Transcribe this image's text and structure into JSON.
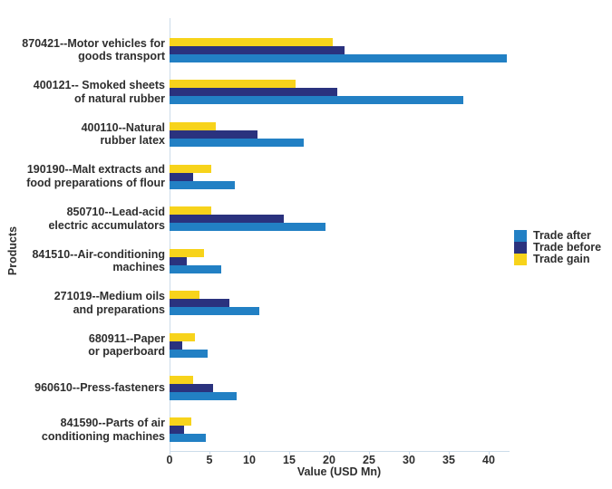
{
  "chart_data": {
    "type": "bar",
    "orientation": "horizontal",
    "xlabel": "Value (USD Mn)",
    "ylabel": "Products",
    "xlim": [
      0,
      42.5
    ],
    "xticks": [
      0,
      5,
      10,
      15,
      20,
      25,
      30,
      35,
      40
    ],
    "grid": false,
    "legend_position": "right",
    "series": [
      {
        "key": "after",
        "name": "Trade after",
        "color": "#2280C4"
      },
      {
        "key": "before",
        "name": "Trade before",
        "color": "#2A327E"
      },
      {
        "key": "gain",
        "name": "Trade gain",
        "color": "#F7D31B"
      }
    ],
    "bar_order_top_to_bottom": [
      "gain",
      "before",
      "after"
    ],
    "categories": [
      {
        "label_lines": [
          "870421--Motor vehicles for",
          "goods transport"
        ],
        "values": {
          "gain": 20.4,
          "before": 21.9,
          "after": 42.3
        }
      },
      {
        "label_lines": [
          "400121-- Smoked sheets",
          "of natural rubber"
        ],
        "values": {
          "gain": 15.8,
          "before": 21.0,
          "after": 36.8
        }
      },
      {
        "label_lines": [
          "400110--Natural",
          "rubber latex"
        ],
        "values": {
          "gain": 5.8,
          "before": 11.0,
          "after": 16.8
        }
      },
      {
        "label_lines": [
          "190190--Malt extracts and",
          "food preparations of flour"
        ],
        "values": {
          "gain": 5.2,
          "before": 3.0,
          "after": 8.2
        }
      },
      {
        "label_lines": [
          "850710--Lead-acid",
          "electric accumulators"
        ],
        "values": {
          "gain": 5.2,
          "before": 14.3,
          "after": 19.5
        }
      },
      {
        "label_lines": [
          "841510--Air-conditioning",
          "machines"
        ],
        "values": {
          "gain": 4.3,
          "before": 2.2,
          "after": 6.5
        }
      },
      {
        "label_lines": [
          "271019--Medium oils",
          "and preparations"
        ],
        "values": {
          "gain": 3.8,
          "before": 7.5,
          "after": 11.3
        }
      },
      {
        "label_lines": [
          "680911--Paper",
          "or paperboard"
        ],
        "values": {
          "gain": 3.2,
          "before": 1.6,
          "after": 4.8
        }
      },
      {
        "label_lines": [
          "960610--Press-fasteners"
        ],
        "values": {
          "gain": 2.9,
          "before": 5.5,
          "after": 8.4
        }
      },
      {
        "label_lines": [
          "841590--Parts of air",
          "conditioning machines"
        ],
        "values": {
          "gain": 2.7,
          "before": 1.8,
          "after": 4.5
        }
      }
    ],
    "colors": {
      "axis_line": "#CCDCEA",
      "text": "#2E2E2E",
      "background": "#FFFFFF"
    }
  }
}
